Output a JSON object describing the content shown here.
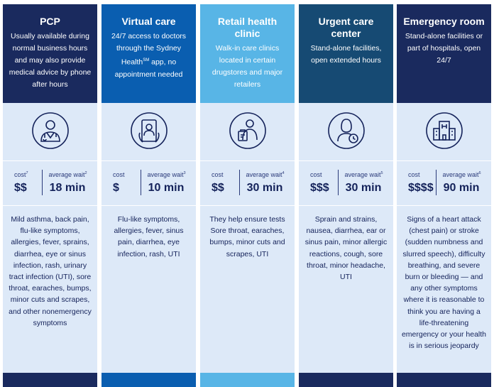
{
  "columns": [
    {
      "title": "PCP",
      "description": "Usually available during normal business hours and may also provide medical advice by phone after hours",
      "icon": "doctor-icon",
      "cost_label": "cost",
      "cost_note": "7",
      "cost": "$$",
      "wait_label": "average wait",
      "wait_note": "2",
      "wait": "18 min",
      "conditions": "Mild asthma, back pain, flu-like symptoms, allergies, fever, sprains, diarrhea, eye or sinus infection, rash, urinary tract infection (UTI), sore throat, earaches, bumps, minor cuts and scrapes, and other nonemergency symptoms",
      "header_color": "#1a2a5e",
      "footer_color": "#1a2a5e"
    },
    {
      "title": "Virtual care",
      "description_pre": "24/7 access to doctors through the Sydney Health",
      "description_sup": "SM",
      "description_post": " app, no appointment needed",
      "icon": "tablet-doctor-icon",
      "cost_label": "cost",
      "cost_note": "",
      "cost": "$",
      "wait_label": "average wait",
      "wait_note": "3",
      "wait": "10 min",
      "conditions": "Flu-like symptoms, allergies, fever, sinus pain, diarrhea, eye infection, rash, UTI",
      "header_color": "#0a5eb0",
      "footer_color": "#0a5eb0"
    },
    {
      "title": "Retail health clinic",
      "description": "Walk-in care clinics located in certain drugstores and major retailers",
      "icon": "clinic-staff-icon",
      "cost_label": "cost",
      "cost_note": "",
      "cost": "$$",
      "wait_label": "average wait",
      "wait_note": "4",
      "wait": "30 min",
      "conditions": "They help ensure tests Sore throat, earaches, bumps, minor cuts and scrapes, UTI",
      "header_color": "#58b5e6",
      "footer_color": "#58b5e6"
    },
    {
      "title": "Urgent care center",
      "description": "Stand-alone facilities, open extended hours",
      "icon": "nurse-clock-icon",
      "cost_label": "cost",
      "cost_note": "",
      "cost": "$$$",
      "wait_label": "average wait",
      "wait_note": "5",
      "wait": "30 min",
      "conditions": "Sprain and strains, nausea, diarrhea, ear or sinus pain, minor allergic reactions, cough, sore throat, minor headache, UTI",
      "header_color": "#164a73",
      "footer_color": "#1a2a5e"
    },
    {
      "title": "Emergency room",
      "description": "Stand-alone facilities or part of hospitals, open 24/7",
      "icon": "hospital-icon",
      "cost_label": "cost",
      "cost_note": "",
      "cost": "$$$$",
      "wait_label": "average wait",
      "wait_note": "6",
      "wait": "90 min",
      "conditions": "Signs of a heart attack (chest pain) or stroke (sudden numbness and slurred speech), difficulty breathing, and severe burn or bleeding — and any other symptoms where it is reasonable to think you are having a life-threatening emergency or your health is in serious jeopardy",
      "header_color": "#1a2a5e",
      "footer_color": "#1a2a5e"
    }
  ],
  "colors": {
    "body_bg": "#dde9f8",
    "icon_stroke": "#14225a",
    "text_dark": "#14225a"
  }
}
